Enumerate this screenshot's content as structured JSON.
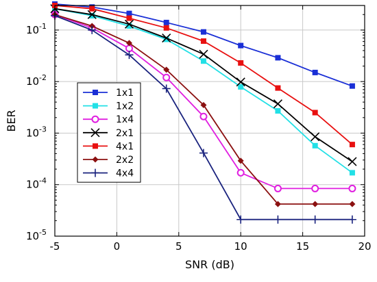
{
  "chart_data": {
    "type": "line",
    "xlabel": "SNR (dB)",
    "ylabel": "BER",
    "xlim": [
      -5,
      20
    ],
    "ylim": [
      1e-05,
      0.3
    ],
    "yscale": "log",
    "grid": true,
    "legend_position": "left-middle",
    "x_ticks": [
      -5,
      0,
      5,
      10,
      15,
      20
    ],
    "x_tick_labels": [
      "-5",
      "0",
      "5",
      "10",
      "15",
      "20"
    ],
    "y_ticks": [
      {
        "value": 0.1,
        "base": "10",
        "exp": "-1"
      },
      {
        "value": 0.01,
        "base": "10",
        "exp": "-2"
      },
      {
        "value": 0.001,
        "base": "10",
        "exp": "-3"
      },
      {
        "value": 0.0001,
        "base": "10",
        "exp": "-4"
      },
      {
        "value": 1e-05,
        "base": "10",
        "exp": "-5"
      }
    ],
    "series": [
      {
        "name": "1x1",
        "color": "#1a2fd6",
        "marker": "square-filled",
        "x": [
          -5,
          -2,
          1,
          4,
          7,
          10,
          13,
          16,
          19
        ],
        "y": [
          0.32,
          0.28,
          0.21,
          0.14,
          0.092,
          0.05,
          0.029,
          0.015,
          0.0082
        ]
      },
      {
        "name": "1x2",
        "color": "#22e0e6",
        "marker": "square-filled",
        "x": [
          -5,
          -2,
          1,
          4,
          7,
          10,
          13,
          16,
          19
        ],
        "y": [
          0.26,
          0.19,
          0.12,
          0.066,
          0.025,
          0.0079,
          0.0027,
          0.00057,
          0.00017
        ]
      },
      {
        "name": "1x4",
        "color": "#e01ee0",
        "marker": "circle-open",
        "x": [
          -5,
          -2,
          1,
          4,
          7,
          10,
          13,
          16,
          19
        ],
        "y": [
          0.2,
          0.11,
          0.044,
          0.012,
          0.0021,
          0.00017,
          8.4e-05,
          8.4e-05,
          8.4e-05
        ]
      },
      {
        "name": "2x1",
        "color": "#000000",
        "marker": "x",
        "x": [
          -5,
          -2,
          1,
          4,
          7,
          10,
          13,
          16,
          19
        ],
        "y": [
          0.26,
          0.2,
          0.13,
          0.07,
          0.034,
          0.0098,
          0.0037,
          0.00085,
          0.00028
        ]
      },
      {
        "name": "4x1",
        "color": "#e81010",
        "marker": "square-filled",
        "x": [
          -5,
          -2,
          1,
          4,
          7,
          10,
          13,
          16,
          19
        ],
        "y": [
          0.3,
          0.26,
          0.17,
          0.11,
          0.061,
          0.023,
          0.0075,
          0.0025,
          0.0006
        ]
      },
      {
        "name": "2x2",
        "color": "#8b1010",
        "marker": "diamond-filled",
        "x": [
          -5,
          -2,
          1,
          4,
          7,
          10,
          13,
          16,
          19
        ],
        "y": [
          0.2,
          0.12,
          0.056,
          0.017,
          0.0035,
          0.00029,
          4.2e-05,
          4.2e-05,
          4.2e-05
        ]
      },
      {
        "name": "4x4",
        "color": "#1a237e",
        "marker": "plus",
        "x": [
          -5,
          -2,
          1,
          4,
          7,
          10,
          13,
          16,
          19
        ],
        "y": [
          0.19,
          0.1,
          0.033,
          0.0073,
          0.00041,
          2.1e-05,
          2.1e-05,
          2.1e-05,
          2.1e-05
        ]
      }
    ]
  }
}
